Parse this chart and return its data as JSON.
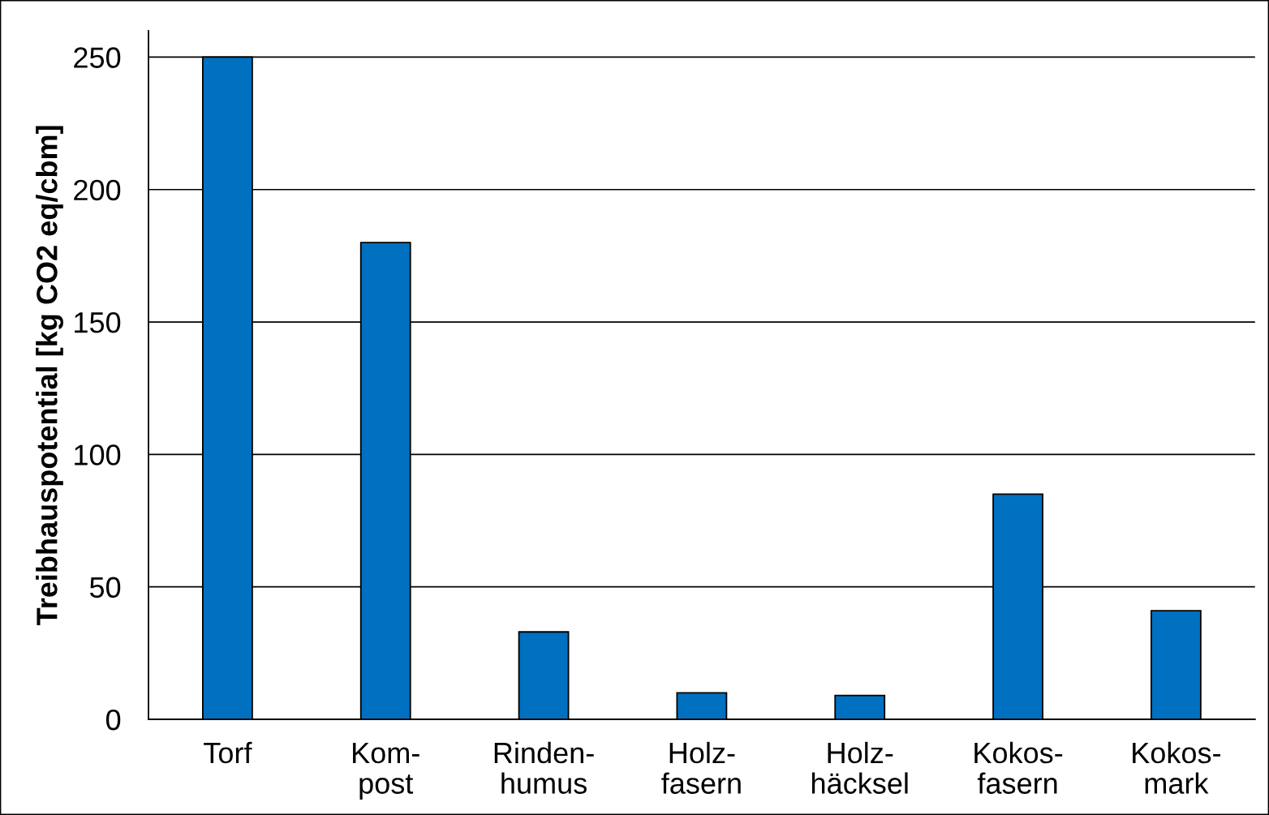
{
  "chart_data": {
    "type": "bar",
    "ylabel": "Treibhauspotential [kg CO2 eq/cbm]",
    "categories": [
      "Torf",
      "Kom-\npost",
      "Rinden-\nhumus",
      "Holz-\nfasern",
      "Holz-\nhäcksel",
      "Kokos-\nfasern",
      "Kokos-\nmark"
    ],
    "values": [
      250,
      180,
      33,
      10,
      9,
      85,
      41
    ],
    "color": "#0070c0",
    "ylim": [
      0,
      260
    ],
    "yticks": [
      0,
      50,
      100,
      150,
      200,
      250
    ],
    "grid": "y",
    "legend": false
  }
}
